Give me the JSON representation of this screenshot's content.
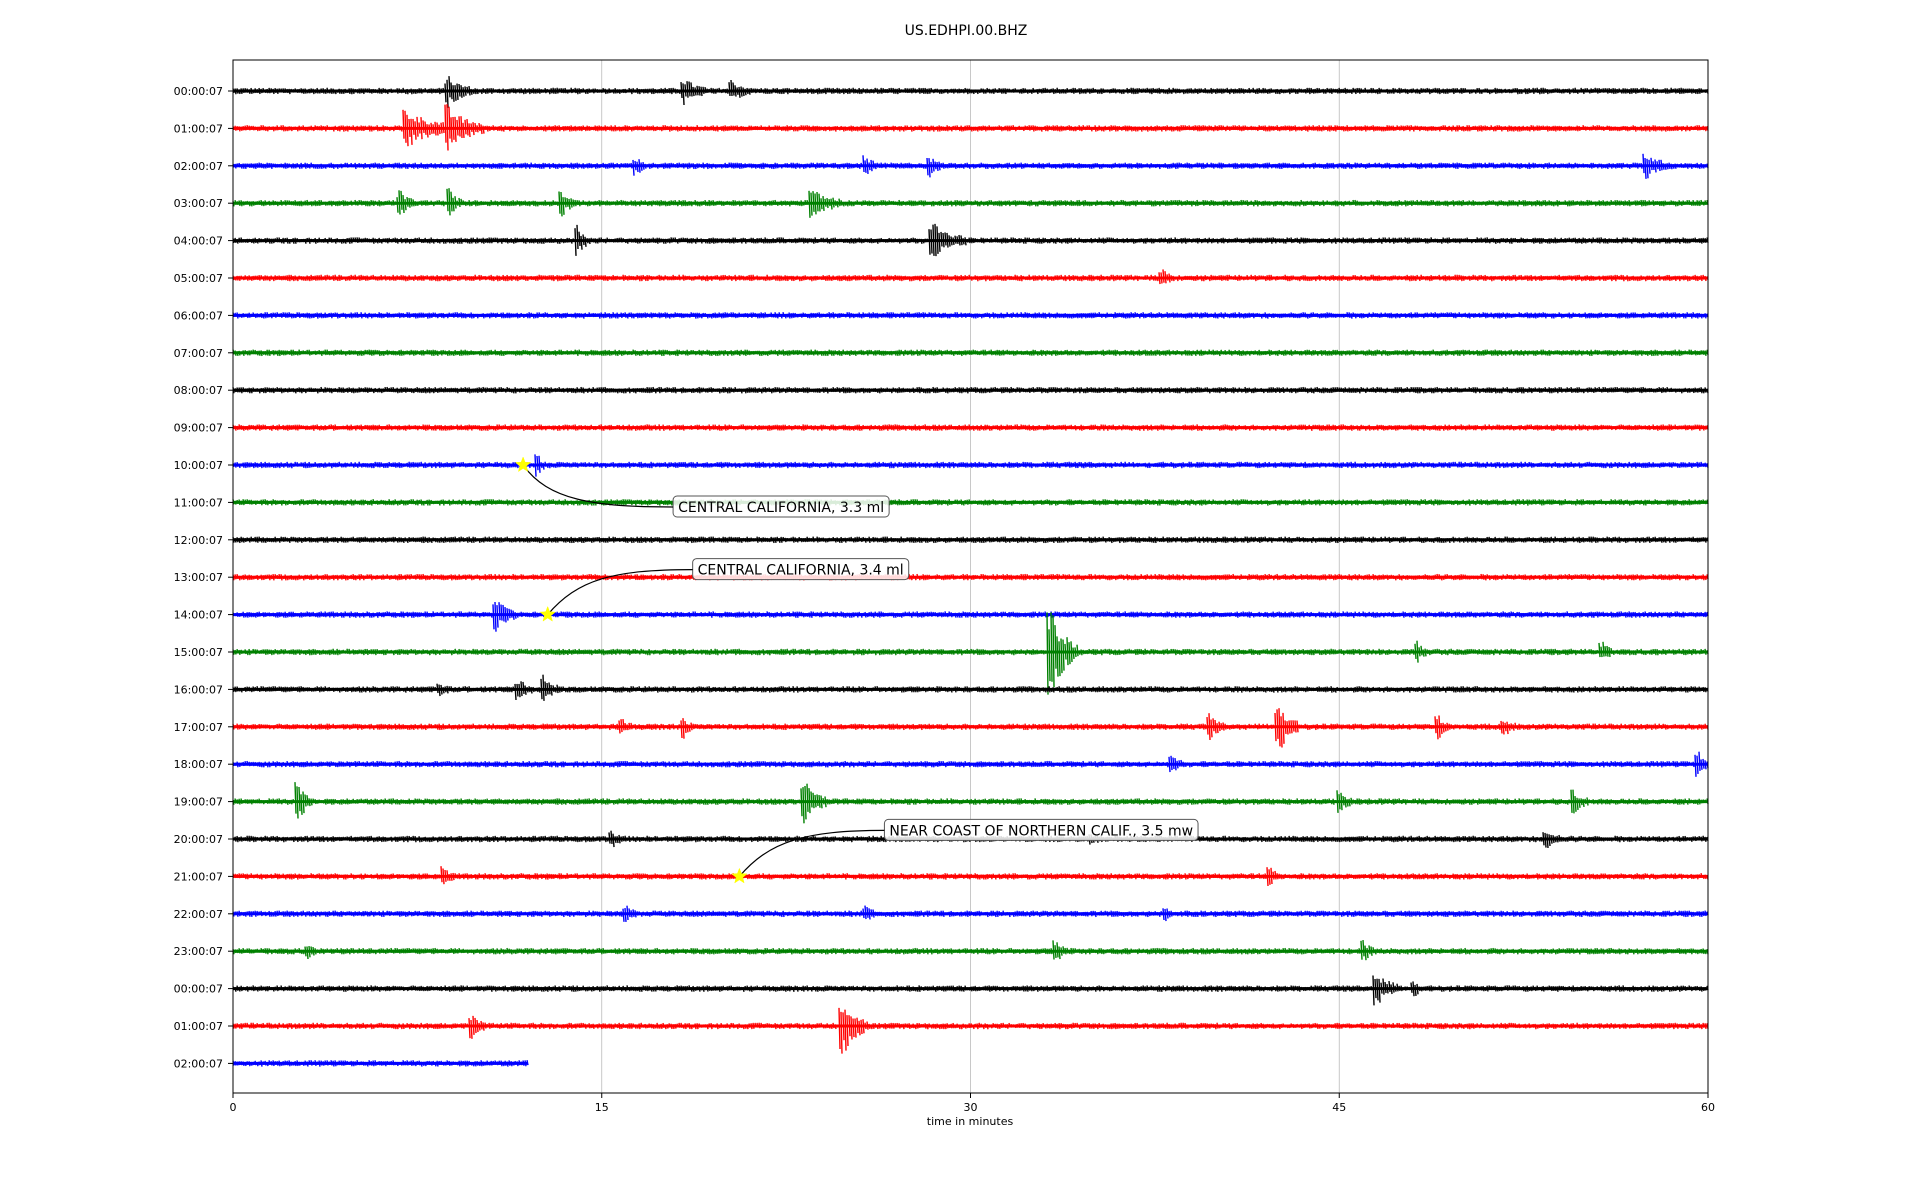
{
  "chart_data": {
    "type": "line",
    "title": "US.EDHPI.00.BHZ",
    "xlabel": "time in minutes",
    "xlim": [
      0,
      60
    ],
    "xticks": [
      "0",
      "15",
      "30",
      "45",
      "60"
    ],
    "grid": "vertical",
    "rows": [
      {
        "label": "00:00:07",
        "color": "#000000",
        "end_min": 60,
        "bursts": [
          [
            8.7,
            1.0,
            0.8
          ],
          [
            18.3,
            0.9,
            0.7
          ],
          [
            20.3,
            0.7,
            0.5
          ]
        ]
      },
      {
        "label": "01:00:07",
        "color": "#ff0000",
        "end_min": 60,
        "bursts": [
          [
            7.0,
            2.0,
            1.0
          ],
          [
            8.7,
            1.5,
            1.2
          ]
        ]
      },
      {
        "label": "02:00:07",
        "color": "#0000ff",
        "end_min": 60,
        "bursts": [
          [
            16.4,
            0.4,
            0.4
          ],
          [
            25.7,
            0.5,
            0.5
          ],
          [
            28.3,
            0.5,
            0.5
          ],
          [
            57.5,
            1.0,
            0.6
          ]
        ]
      },
      {
        "label": "03:00:07",
        "color": "#008000",
        "end_min": 60,
        "bursts": [
          [
            6.8,
            0.6,
            0.6
          ],
          [
            8.8,
            0.5,
            0.7
          ],
          [
            13.4,
            0.5,
            0.6
          ],
          [
            23.5,
            1.2,
            0.8
          ]
        ]
      },
      {
        "label": "04:00:07",
        "color": "#000000",
        "end_min": 60,
        "bursts": [
          [
            14.0,
            0.5,
            0.7
          ],
          [
            28.4,
            1.4,
            1.0
          ]
        ]
      },
      {
        "label": "05:00:07",
        "color": "#ff0000",
        "end_min": 60,
        "bursts": [
          [
            37.8,
            0.5,
            0.4
          ]
        ]
      },
      {
        "label": "06:00:07",
        "color": "#0000ff",
        "end_min": 60,
        "bursts": []
      },
      {
        "label": "07:00:07",
        "color": "#008000",
        "end_min": 60,
        "bursts": []
      },
      {
        "label": "08:00:07",
        "color": "#000000",
        "end_min": 60,
        "bursts": []
      },
      {
        "label": "09:00:07",
        "color": "#ff0000",
        "end_min": 60,
        "bursts": []
      },
      {
        "label": "10:00:07",
        "color": "#0000ff",
        "end_min": 60,
        "bursts": [
          [
            12.4,
            0.3,
            0.5
          ]
        ]
      },
      {
        "label": "11:00:07",
        "color": "#008000",
        "end_min": 60,
        "bursts": []
      },
      {
        "label": "12:00:07",
        "color": "#000000",
        "end_min": 60,
        "bursts": []
      },
      {
        "label": "13:00:07",
        "color": "#ff0000",
        "end_min": 60,
        "bursts": []
      },
      {
        "label": "14:00:07",
        "color": "#0000ff",
        "end_min": 60,
        "bursts": [
          [
            10.7,
            0.8,
            0.8
          ]
        ]
      },
      {
        "label": "15:00:07",
        "color": "#008000",
        "end_min": 60,
        "bursts": [
          [
            33.2,
            1.2,
            2.5
          ],
          [
            48.2,
            0.4,
            0.5
          ],
          [
            55.7,
            0.4,
            0.5
          ]
        ]
      },
      {
        "label": "16:00:07",
        "color": "#000000",
        "end_min": 60,
        "bursts": [
          [
            8.4,
            0.4,
            0.3
          ],
          [
            11.6,
            0.6,
            0.5
          ],
          [
            12.6,
            0.6,
            0.8
          ]
        ]
      },
      {
        "label": "17:00:07",
        "color": "#ff0000",
        "end_min": 60,
        "bursts": [
          [
            15.8,
            0.4,
            0.4
          ],
          [
            18.3,
            0.4,
            0.5
          ],
          [
            39.7,
            0.6,
            0.6
          ],
          [
            42.5,
            0.8,
            1.5
          ],
          [
            49.0,
            0.5,
            0.6
          ],
          [
            51.7,
            0.5,
            0.4
          ]
        ]
      },
      {
        "label": "18:00:07",
        "color": "#0000ff",
        "end_min": 60,
        "bursts": [
          [
            38.2,
            0.4,
            0.5
          ],
          [
            59.6,
            0.6,
            0.6
          ]
        ]
      },
      {
        "label": "19:00:07",
        "color": "#008000",
        "end_min": 60,
        "bursts": [
          [
            2.6,
            0.6,
            1.2
          ],
          [
            23.2,
            0.9,
            1.2
          ],
          [
            45.0,
            0.5,
            0.5
          ],
          [
            54.5,
            0.6,
            0.6
          ]
        ]
      },
      {
        "label": "20:00:07",
        "color": "#000000",
        "end_min": 60,
        "bursts": [
          [
            15.4,
            0.4,
            0.4
          ],
          [
            34.9,
            0.3,
            0.3
          ],
          [
            53.4,
            0.6,
            0.5
          ]
        ]
      },
      {
        "label": "21:00:07",
        "color": "#ff0000",
        "end_min": 60,
        "bursts": [
          [
            8.6,
            0.4,
            0.4
          ],
          [
            42.2,
            0.4,
            0.4
          ]
        ]
      },
      {
        "label": "22:00:07",
        "color": "#0000ff",
        "end_min": 60,
        "bursts": [
          [
            16.0,
            0.4,
            0.4
          ],
          [
            25.7,
            0.4,
            0.4
          ],
          [
            37.9,
            0.3,
            0.3
          ]
        ]
      },
      {
        "label": "23:00:07",
        "color": "#008000",
        "end_min": 60,
        "bursts": [
          [
            3.0,
            0.3,
            0.4
          ],
          [
            33.5,
            0.5,
            0.5
          ],
          [
            46.0,
            0.4,
            0.5
          ]
        ]
      },
      {
        "label": "00:00:07",
        "color": "#000000",
        "end_min": 60,
        "bursts": [
          [
            46.5,
            1.0,
            0.8
          ],
          [
            48.0,
            0.4,
            0.4
          ]
        ]
      },
      {
        "label": "01:00:07",
        "color": "#ff0000",
        "end_min": 60,
        "bursts": [
          [
            9.7,
            0.6,
            0.6
          ],
          [
            24.8,
            1.0,
            1.5
          ]
        ]
      },
      {
        "label": "02:00:07",
        "color": "#0000ff",
        "end_min": 12,
        "bursts": []
      }
    ],
    "events": [
      {
        "text": "CENTRAL CALIFORNIA, 3.3 ml",
        "row": 10,
        "minute": 11.8
      },
      {
        "text": "CENTRAL CALIFORNIA, 3.4 ml",
        "row": 14,
        "minute": 12.8
      },
      {
        "text": "NEAR COAST OF NORTHERN CALIF., 3.5 mw",
        "row": 21,
        "minute": 20.6
      }
    ]
  }
}
